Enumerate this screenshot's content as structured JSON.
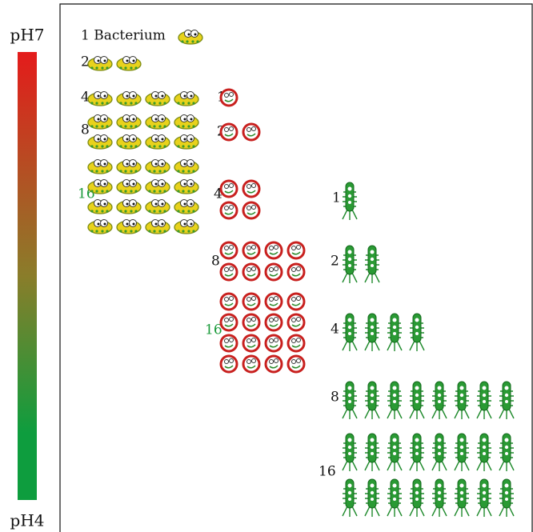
{
  "scale": {
    "top": "pH7",
    "bottom": "pH4"
  },
  "groups": [
    {
      "rows": [
        {
          "count": 1,
          "label": "1 Bacterium"
        },
        {
          "count": 2
        },
        {
          "count": 4
        },
        {
          "count": 8
        },
        {
          "count": 16,
          "color": "#1a9a3a"
        }
      ]
    },
    {
      "rows": [
        {
          "count": 1
        },
        {
          "count": 2
        },
        {
          "count": 4
        },
        {
          "count": 8
        },
        {
          "count": 16,
          "color": "#1a9a3a"
        }
      ]
    },
    {
      "rows": [
        {
          "count": 1
        },
        {
          "count": 2
        },
        {
          "count": 4
        },
        {
          "count": 8
        },
        {
          "count": 16
        }
      ]
    }
  ]
}
